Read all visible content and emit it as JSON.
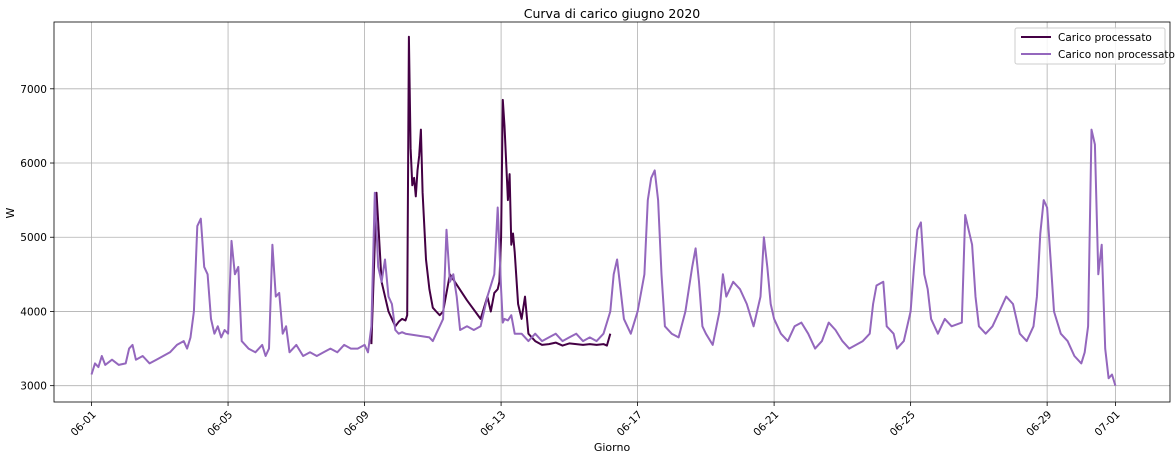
{
  "chart_data": {
    "type": "line",
    "title": "Curva di carico giugno 2020",
    "xlabel": "Giorno",
    "ylabel": "W",
    "x_range_days": [
      -1.1,
      31.6
    ],
    "ylim": [
      2780,
      7900
    ],
    "x_ticks": [
      {
        "day": 0,
        "label": "06-01"
      },
      {
        "day": 4,
        "label": "06-05"
      },
      {
        "day": 8,
        "label": "06-09"
      },
      {
        "day": 12,
        "label": "06-13"
      },
      {
        "day": 16,
        "label": "06-17"
      },
      {
        "day": 20,
        "label": "06-21"
      },
      {
        "day": 24,
        "label": "06-25"
      },
      {
        "day": 28,
        "label": "06-29"
      },
      {
        "day": 30,
        "label": "07-01"
      }
    ],
    "y_ticks": [
      3000,
      4000,
      5000,
      6000,
      7000
    ],
    "grid": true,
    "legend_position": "top-right",
    "series": [
      {
        "name": "Carico processato",
        "color": "#440044",
        "points": [
          [
            8.2,
            3560
          ],
          [
            8.35,
            5600
          ],
          [
            8.5,
            4400
          ],
          [
            8.7,
            4000
          ],
          [
            8.9,
            3800
          ],
          [
            9.0,
            3860
          ],
          [
            9.1,
            3900
          ],
          [
            9.2,
            3880
          ],
          [
            9.25,
            3950
          ],
          [
            9.3,
            7700
          ],
          [
            9.35,
            6200
          ],
          [
            9.4,
            5700
          ],
          [
            9.45,
            5800
          ],
          [
            9.5,
            5550
          ],
          [
            9.55,
            5900
          ],
          [
            9.6,
            6100
          ],
          [
            9.65,
            6450
          ],
          [
            9.7,
            5600
          ],
          [
            9.8,
            4700
          ],
          [
            9.9,
            4300
          ],
          [
            10.0,
            4050
          ],
          [
            10.1,
            4000
          ],
          [
            10.2,
            3950
          ],
          [
            10.3,
            4000
          ],
          [
            10.5,
            4500
          ],
          [
            11.0,
            4150
          ],
          [
            11.4,
            3900
          ],
          [
            11.6,
            4200
          ],
          [
            11.7,
            4000
          ],
          [
            11.8,
            4250
          ],
          [
            11.9,
            4300
          ],
          [
            11.95,
            4400
          ],
          [
            12.0,
            5000
          ],
          [
            12.05,
            6850
          ],
          [
            12.1,
            6500
          ],
          [
            12.2,
            5500
          ],
          [
            12.25,
            5850
          ],
          [
            12.3,
            4900
          ],
          [
            12.35,
            5050
          ],
          [
            12.4,
            4800
          ],
          [
            12.5,
            4100
          ],
          [
            12.6,
            3900
          ],
          [
            12.7,
            4200
          ],
          [
            12.8,
            3700
          ],
          [
            12.9,
            3650
          ],
          [
            13.0,
            3600
          ],
          [
            13.2,
            3550
          ],
          [
            13.4,
            3560
          ],
          [
            13.6,
            3580
          ],
          [
            13.8,
            3540
          ],
          [
            14.0,
            3570
          ],
          [
            14.2,
            3560
          ],
          [
            14.4,
            3550
          ],
          [
            14.6,
            3560
          ],
          [
            14.8,
            3550
          ],
          [
            15.0,
            3560
          ],
          [
            15.1,
            3540
          ],
          [
            15.2,
            3700
          ]
        ]
      },
      {
        "name": "Carico non processato",
        "color": "#9467bd",
        "points": [
          [
            0.0,
            3150
          ],
          [
            0.1,
            3300
          ],
          [
            0.2,
            3250
          ],
          [
            0.3,
            3400
          ],
          [
            0.4,
            3280
          ],
          [
            0.6,
            3350
          ],
          [
            0.8,
            3280
          ],
          [
            1.0,
            3300
          ],
          [
            1.1,
            3500
          ],
          [
            1.2,
            3550
          ],
          [
            1.3,
            3350
          ],
          [
            1.5,
            3400
          ],
          [
            1.7,
            3300
          ],
          [
            1.9,
            3350
          ],
          [
            2.1,
            3400
          ],
          [
            2.3,
            3450
          ],
          [
            2.5,
            3550
          ],
          [
            2.7,
            3600
          ],
          [
            2.8,
            3500
          ],
          [
            2.9,
            3650
          ],
          [
            3.0,
            4000
          ],
          [
            3.1,
            5150
          ],
          [
            3.2,
            5250
          ],
          [
            3.3,
            4600
          ],
          [
            3.4,
            4500
          ],
          [
            3.5,
            3900
          ],
          [
            3.6,
            3700
          ],
          [
            3.7,
            3800
          ],
          [
            3.8,
            3650
          ],
          [
            3.9,
            3750
          ],
          [
            4.0,
            3700
          ],
          [
            4.1,
            4950
          ],
          [
            4.2,
            4500
          ],
          [
            4.3,
            4600
          ],
          [
            4.4,
            3600
          ],
          [
            4.6,
            3500
          ],
          [
            4.8,
            3450
          ],
          [
            5.0,
            3550
          ],
          [
            5.1,
            3400
          ],
          [
            5.2,
            3500
          ],
          [
            5.3,
            4900
          ],
          [
            5.4,
            4200
          ],
          [
            5.5,
            4250
          ],
          [
            5.6,
            3700
          ],
          [
            5.7,
            3800
          ],
          [
            5.8,
            3450
          ],
          [
            6.0,
            3550
          ],
          [
            6.2,
            3400
          ],
          [
            6.4,
            3450
          ],
          [
            6.6,
            3400
          ],
          [
            6.8,
            3450
          ],
          [
            7.0,
            3500
          ],
          [
            7.2,
            3450
          ],
          [
            7.4,
            3550
          ],
          [
            7.6,
            3500
          ],
          [
            7.8,
            3500
          ],
          [
            8.0,
            3550
          ],
          [
            8.1,
            3450
          ],
          [
            8.2,
            3800
          ],
          [
            8.3,
            5600
          ],
          [
            8.4,
            4600
          ],
          [
            8.5,
            4400
          ],
          [
            8.6,
            4700
          ],
          [
            8.7,
            4200
          ],
          [
            8.8,
            4100
          ],
          [
            8.9,
            3750
          ],
          [
            9.0,
            3700
          ],
          [
            9.1,
            3720
          ],
          [
            9.2,
            3700
          ],
          [
            9.9,
            3650
          ],
          [
            10.0,
            3600
          ],
          [
            10.1,
            3700
          ],
          [
            10.2,
            3800
          ],
          [
            10.3,
            3900
          ],
          [
            10.4,
            5100
          ],
          [
            10.5,
            4400
          ],
          [
            10.6,
            4500
          ],
          [
            10.7,
            4200
          ],
          [
            10.8,
            3750
          ],
          [
            11.0,
            3800
          ],
          [
            11.2,
            3750
          ],
          [
            11.4,
            3800
          ],
          [
            11.6,
            4200
          ],
          [
            11.8,
            4500
          ],
          [
            11.9,
            5400
          ],
          [
            12.0,
            4300
          ],
          [
            12.05,
            3850
          ],
          [
            12.1,
            3900
          ],
          [
            12.2,
            3880
          ],
          [
            12.3,
            3950
          ],
          [
            12.4,
            3700
          ],
          [
            12.6,
            3700
          ],
          [
            12.8,
            3600
          ],
          [
            13.0,
            3700
          ],
          [
            13.2,
            3600
          ],
          [
            13.4,
            3650
          ],
          [
            13.6,
            3700
          ],
          [
            13.8,
            3600
          ],
          [
            14.0,
            3650
          ],
          [
            14.2,
            3700
          ],
          [
            14.4,
            3600
          ],
          [
            14.6,
            3650
          ],
          [
            14.8,
            3600
          ],
          [
            15.0,
            3700
          ],
          [
            15.2,
            4000
          ],
          [
            15.3,
            4500
          ],
          [
            15.4,
            4700
          ],
          [
            15.5,
            4300
          ],
          [
            15.6,
            3900
          ],
          [
            15.8,
            3700
          ],
          [
            16.0,
            4000
          ],
          [
            16.2,
            4500
          ],
          [
            16.3,
            5500
          ],
          [
            16.4,
            5800
          ],
          [
            16.5,
            5900
          ],
          [
            16.6,
            5500
          ],
          [
            16.7,
            4500
          ],
          [
            16.8,
            3800
          ],
          [
            17.0,
            3700
          ],
          [
            17.2,
            3650
          ],
          [
            17.4,
            4000
          ],
          [
            17.5,
            4300
          ],
          [
            17.6,
            4600
          ],
          [
            17.7,
            4850
          ],
          [
            17.8,
            4400
          ],
          [
            17.9,
            3800
          ],
          [
            18.0,
            3700
          ],
          [
            18.2,
            3550
          ],
          [
            18.4,
            4000
          ],
          [
            18.5,
            4500
          ],
          [
            18.6,
            4200
          ],
          [
            18.8,
            4400
          ],
          [
            19.0,
            4300
          ],
          [
            19.2,
            4100
          ],
          [
            19.4,
            3800
          ],
          [
            19.6,
            4200
          ],
          [
            19.7,
            5000
          ],
          [
            19.8,
            4600
          ],
          [
            19.9,
            4100
          ],
          [
            20.0,
            3900
          ],
          [
            20.2,
            3700
          ],
          [
            20.4,
            3600
          ],
          [
            20.6,
            3800
          ],
          [
            20.8,
            3850
          ],
          [
            21.0,
            3700
          ],
          [
            21.2,
            3500
          ],
          [
            21.4,
            3600
          ],
          [
            21.6,
            3850
          ],
          [
            21.8,
            3750
          ],
          [
            22.0,
            3600
          ],
          [
            22.2,
            3500
          ],
          [
            22.4,
            3550
          ],
          [
            22.6,
            3600
          ],
          [
            22.8,
            3700
          ],
          [
            22.9,
            4100
          ],
          [
            23.0,
            4350
          ],
          [
            23.2,
            4400
          ],
          [
            23.3,
            3800
          ],
          [
            23.5,
            3700
          ],
          [
            23.6,
            3500
          ],
          [
            23.8,
            3600
          ],
          [
            24.0,
            4000
          ],
          [
            24.1,
            4600
          ],
          [
            24.2,
            5100
          ],
          [
            24.3,
            5200
          ],
          [
            24.4,
            4500
          ],
          [
            24.5,
            4300
          ],
          [
            24.6,
            3900
          ],
          [
            24.8,
            3700
          ],
          [
            25.0,
            3900
          ],
          [
            25.2,
            3800
          ],
          [
            25.5,
            3850
          ],
          [
            25.6,
            5300
          ],
          [
            25.7,
            5100
          ],
          [
            25.8,
            4900
          ],
          [
            25.9,
            4200
          ],
          [
            26.0,
            3800
          ],
          [
            26.2,
            3700
          ],
          [
            26.4,
            3800
          ],
          [
            26.6,
            4000
          ],
          [
            26.8,
            4200
          ],
          [
            27.0,
            4100
          ],
          [
            27.2,
            3700
          ],
          [
            27.4,
            3600
          ],
          [
            27.6,
            3800
          ],
          [
            27.7,
            4200
          ],
          [
            27.8,
            5050
          ],
          [
            27.9,
            5500
          ],
          [
            28.0,
            5400
          ],
          [
            28.1,
            4700
          ],
          [
            28.2,
            4000
          ],
          [
            28.4,
            3700
          ],
          [
            28.6,
            3600
          ],
          [
            28.8,
            3400
          ],
          [
            29.0,
            3300
          ],
          [
            29.1,
            3450
          ],
          [
            29.2,
            3800
          ],
          [
            29.3,
            6450
          ],
          [
            29.4,
            6250
          ],
          [
            29.5,
            4500
          ],
          [
            29.6,
            4900
          ],
          [
            29.7,
            3500
          ],
          [
            29.8,
            3100
          ],
          [
            29.9,
            3150
          ],
          [
            30.0,
            3000
          ]
        ]
      }
    ]
  }
}
